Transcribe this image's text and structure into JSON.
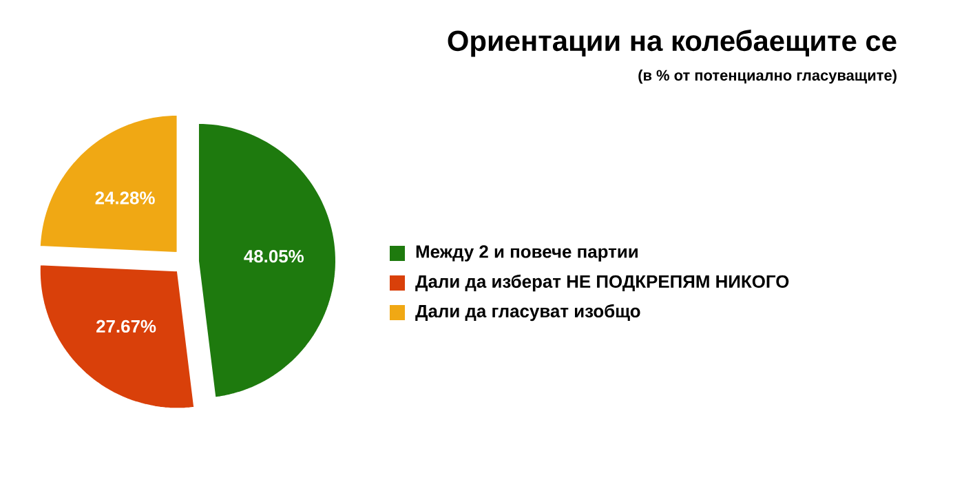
{
  "chart_data": {
    "type": "pie",
    "title": "Ориентации на колебаещите се",
    "subtitle": "(в % от потенциално гласуващите)",
    "categories": [
      "Между 2 и повече партии",
      "Дали да изберат НЕ ПОДКРЕПЯМ НИКОГО",
      "Дали да гласуват изобщо"
    ],
    "values": [
      48.05,
      27.67,
      24.28
    ],
    "colors": [
      "#1e7a0e",
      "#d9400a",
      "#f0a814"
    ],
    "value_labels": [
      "48.05%",
      "27.67%",
      "24.28%"
    ],
    "legend": "right"
  }
}
